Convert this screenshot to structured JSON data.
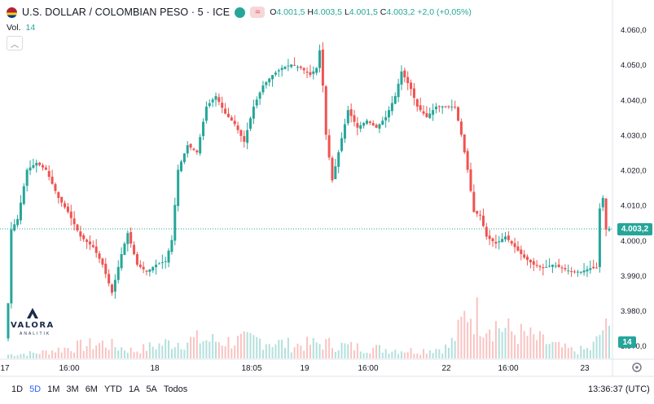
{
  "header": {
    "symbol": "U.S. DOLLAR / COLOMBIAN PESO · 5 · ICE",
    "wave_icon": "≈",
    "open": "4.001,5",
    "high": "4.003,5",
    "low": "4.001,5",
    "close": "4.003,2",
    "change": "+2,0 (+0,05%)",
    "colors": {
      "up": "#26a69a",
      "down": "#ef5350"
    }
  },
  "volume": {
    "label": "Vol.",
    "value": "14"
  },
  "price_badge": "4.003,2",
  "volume_badge": "14",
  "logo": {
    "name": "VALORA",
    "sub": "ANALITIK"
  },
  "ranges": [
    "1D",
    "5D",
    "1M",
    "3M",
    "6M",
    "YTD",
    "1A",
    "5A",
    "Todos"
  ],
  "active_range": "5D",
  "clock": "13:36:37 (UTC)",
  "chart_data": {
    "type": "candlestick",
    "title": "U.S. DOLLAR / COLOMBIAN PESO · 5 · ICE",
    "ylim": [
      3975,
      4063
    ],
    "y_ticks": [
      "4.060,0",
      "4.050,0",
      "4.040,0",
      "4.030,0",
      "4.020,0",
      "4.010,0",
      "4.000,0",
      "3.990,0",
      "3.980,0",
      "3.970,0"
    ],
    "y_tick_values": [
      4060,
      4050,
      4040,
      4030,
      4020,
      4010,
      4000,
      3990,
      3980,
      3970
    ],
    "x_ticks": [
      "17",
      "16:00",
      "18",
      "18:05",
      "19",
      "16:00",
      "22",
      "16:00",
      "23"
    ],
    "last_price": 4003.2,
    "close_path": [
      [
        0,
        3982
      ],
      [
        1,
        4003
      ],
      [
        3,
        4006
      ],
      [
        6,
        4020
      ],
      [
        9,
        4022
      ],
      [
        12,
        4020
      ],
      [
        16,
        4012
      ],
      [
        19,
        4008
      ],
      [
        23,
        4001
      ],
      [
        27,
        3998
      ],
      [
        30,
        3993
      ],
      [
        33,
        3985
      ],
      [
        36,
        3996
      ],
      [
        38,
        4002
      ],
      [
        41,
        3993
      ],
      [
        44,
        3991
      ],
      [
        47,
        3993
      ],
      [
        50,
        3994
      ],
      [
        52,
        4000
      ],
      [
        54,
        4020
      ],
      [
        57,
        4027
      ],
      [
        60,
        4025
      ],
      [
        63,
        4038
      ],
      [
        66,
        4041
      ],
      [
        69,
        4036
      ],
      [
        72,
        4033
      ],
      [
        75,
        4028
      ],
      [
        78,
        4038
      ],
      [
        81,
        4044
      ],
      [
        84,
        4047
      ],
      [
        87,
        4049
      ],
      [
        90,
        4050
      ],
      [
        93,
        4049
      ],
      [
        96,
        4047
      ],
      [
        98,
        4049
      ],
      [
        99,
        4054
      ],
      [
        100,
        4044
      ],
      [
        101,
        4030
      ],
      [
        103,
        4017
      ],
      [
        105,
        4025
      ],
      [
        108,
        4037
      ],
      [
        111,
        4032
      ],
      [
        114,
        4034
      ],
      [
        117,
        4032
      ],
      [
        120,
        4035
      ],
      [
        123,
        4041
      ],
      [
        125,
        4048
      ],
      [
        128,
        4043
      ],
      [
        130,
        4038
      ],
      [
        133,
        4035
      ],
      [
        136,
        4038
      ],
      [
        139,
        4038
      ],
      [
        142,
        4038
      ],
      [
        144,
        4030
      ],
      [
        146,
        4020
      ],
      [
        148,
        4008
      ],
      [
        150,
        4007
      ],
      [
        152,
        4001
      ],
      [
        155,
        3999
      ],
      [
        158,
        4001
      ],
      [
        161,
        3998
      ],
      [
        164,
        3995
      ],
      [
        167,
        3993
      ],
      [
        170,
        3992
      ],
      [
        173,
        3993
      ],
      [
        176,
        3992
      ],
      [
        179,
        3991
      ],
      [
        182,
        3991
      ],
      [
        185,
        3992
      ],
      [
        187,
        3992
      ],
      [
        188,
        4009
      ],
      [
        189,
        4012
      ],
      [
        190,
        4003
      ],
      [
        191,
        4003.2
      ]
    ],
    "volume_path": [
      [
        0,
        2
      ],
      [
        10,
        3
      ],
      [
        20,
        6
      ],
      [
        30,
        8
      ],
      [
        40,
        4
      ],
      [
        50,
        8
      ],
      [
        60,
        10
      ],
      [
        70,
        9
      ],
      [
        80,
        10
      ],
      [
        90,
        7
      ],
      [
        100,
        8
      ],
      [
        110,
        6
      ],
      [
        120,
        5
      ],
      [
        130,
        4
      ],
      [
        140,
        6
      ],
      [
        143,
        14
      ],
      [
        146,
        26
      ],
      [
        150,
        22
      ],
      [
        155,
        18
      ],
      [
        160,
        14
      ],
      [
        165,
        12
      ],
      [
        170,
        9
      ],
      [
        175,
        6
      ],
      [
        180,
        4
      ],
      [
        185,
        5
      ],
      [
        187,
        9
      ],
      [
        189,
        16
      ],
      [
        191,
        14
      ]
    ]
  }
}
